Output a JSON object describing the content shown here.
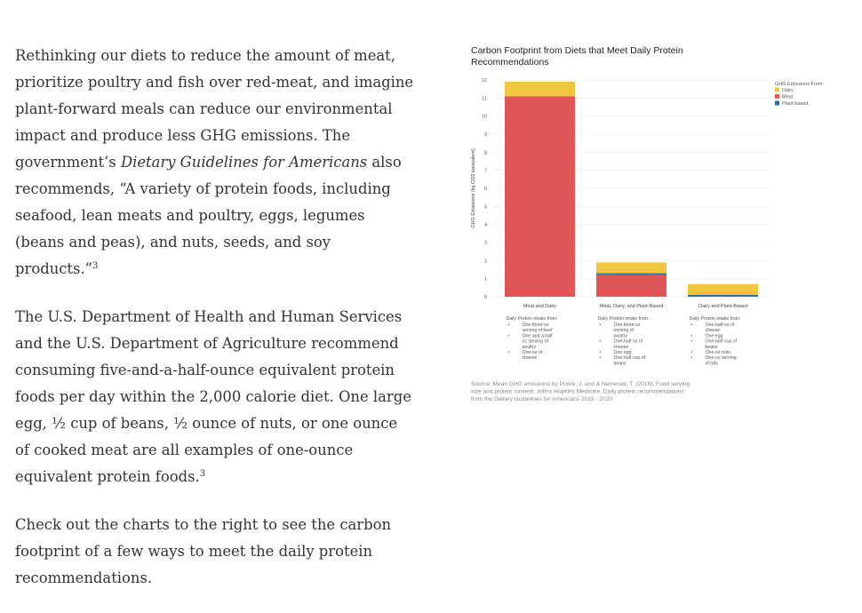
{
  "article": {
    "p1": {
      "before": "Rethinking our diets to reduce the amount of meat, prioritize poultry and fish over red-meat, and imagine plant-forward meals can reduce our environmental impact and produce less GHG emissions.  The government’s ",
      "italic": "Dietary Guidelines for Americans",
      "after": " also recommends, “A variety of protein foods, including seafood, lean meats and poultry, eggs, legumes (beans and peas), and nuts, seeds, and soy products.”",
      "ref": "3"
    },
    "p2": {
      "text": "The U.S. Department of Health and Human Services and the U.S. Department of Agriculture recommend consuming five-and-a-half-ounce equivalent protein foods per day within the 2,000 calorie diet.  One large egg, ½ cup of beans, ½ ounce of nuts, or one ounce of cooked meat are all examples of one-ounce equivalent protein foods.",
      "ref": "3"
    },
    "p3": {
      "text": "Check out the charts to the right to see the carbon footprint of a few ways to meet the daily protein recommendations."
    }
  },
  "chart_data": {
    "type": "bar",
    "stacked": true,
    "title": "Carbon Footprint from Diets that Meet Daily Protein Recommendations",
    "ylabel": "GHG Emissions (kg CO2 equivalent)",
    "xlabel": "",
    "ylim": [
      0,
      12
    ],
    "yticks": [
      0,
      1,
      2,
      3,
      4,
      5,
      6,
      7,
      8,
      9,
      10,
      11,
      12
    ],
    "grid": true,
    "categories": [
      "Meat and Dairy",
      "Meat, Dairy, and Plant-Based",
      "Dairy and Plant-Based"
    ],
    "series": [
      {
        "name": "Plant-based",
        "color": "#2e6da4",
        "values": [
          0,
          0.1,
          0.1
        ]
      },
      {
        "name": "Meat",
        "color": "#e05656",
        "values": [
          11.1,
          1.2,
          0
        ]
      },
      {
        "name": "Dairy",
        "color": "#f0c640",
        "values": [
          0.8,
          0.6,
          0.6
        ]
      }
    ],
    "stack_order": [
      "Meat",
      "Plant-based",
      "Dairy"
    ],
    "legend": {
      "title": "GHG Emissions From",
      "position": "top-right",
      "items": [
        "Dairy",
        "Meat",
        "Plant-based"
      ]
    },
    "annotations": [
      {
        "heading": "Daily Protein intake from:",
        "items": [
          "One three-oz serving of beef",
          "One and a half oz serving of poultry",
          "One-oz of cheese"
        ]
      },
      {
        "heading": "Daily Protein intake from:",
        "items": [
          "One three-oz serving of poultry",
          "One-half oz of cheese",
          "One egg",
          "One-half cup of beans"
        ]
      },
      {
        "heading": "Daily Protein intake from:",
        "items": [
          "One-half-oz of cheese",
          "One egg",
          "One-half cup of beans",
          "One-oz nuts",
          "One-oz serving of tofu"
        ]
      }
    ],
    "source": "Source: Mean GHG emissions by Poore, J. and & Nemecek, T. (2018); Food serving size and protein content: Johns Hopkins Medicine, Daily protein recommendations from the Dietary Guidelines for Americans 2015 - 2020"
  }
}
